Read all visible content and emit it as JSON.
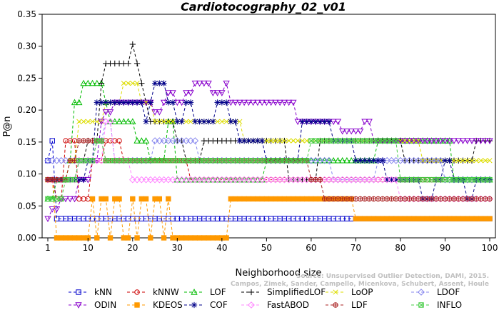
{
  "chart_data": {
    "type": "line",
    "title": "Cardiotocography_02_v01",
    "xlabel": "Neighborhood size",
    "ylabel": "P@n",
    "xlim": [
      1,
      100
    ],
    "ylim": [
      0,
      0.35
    ],
    "x_ticks": [
      1,
      10,
      20,
      30,
      40,
      50,
      60,
      70,
      80,
      90,
      100
    ],
    "y_ticks": [
      "0.00",
      "0.05",
      "0.10",
      "0.15",
      "0.20",
      "0.25",
      "0.30",
      "0.35"
    ],
    "legend_position": "bottom",
    "watermark": [
      "Source: Unsupervised Outlier Detection, DAMI, 2015.",
      "Campos, Zimek, Sander, Campello, Micenkova, Schubert, Assent, Houle"
    ],
    "series": [
      {
        "name": "kNN",
        "color": "#0000cc",
        "marker": "square",
        "points": [
          [
            1,
            0.121
          ],
          [
            2,
            0.152
          ],
          [
            3,
            0.03
          ],
          [
            100,
            0.03
          ]
        ]
      },
      {
        "name": "kNNW",
        "color": "#cc0000",
        "marker": "circle",
        "points": [
          [
            1,
            0.091
          ],
          [
            3,
            0.061
          ],
          [
            5,
            0.152
          ],
          [
            8,
            0.061
          ],
          [
            10,
            0.061
          ],
          [
            11,
            0.121
          ],
          [
            14,
            0.152
          ],
          [
            17,
            0.152
          ],
          [
            18,
            0.121
          ],
          [
            28,
            0.121
          ],
          [
            32,
            0.121
          ],
          [
            33,
            0.091
          ],
          [
            100,
            0.091
          ]
        ]
      },
      {
        "name": "LOF",
        "color": "#00bb00",
        "marker": "triangle-up",
        "points": [
          [
            1,
            0.061
          ],
          [
            3,
            0.091
          ],
          [
            6,
            0.121
          ],
          [
            7,
            0.212
          ],
          [
            9,
            0.242
          ],
          [
            12,
            0.242
          ],
          [
            14,
            0.212
          ],
          [
            15,
            0.182
          ],
          [
            20,
            0.182
          ],
          [
            21,
            0.152
          ],
          [
            24,
            0.121
          ],
          [
            27,
            0.121
          ],
          [
            28,
            0.182
          ],
          [
            30,
            0.091
          ],
          [
            40,
            0.091
          ],
          [
            45,
            0.091
          ],
          [
            50,
            0.121
          ],
          [
            65,
            0.121
          ],
          [
            70,
            0.121
          ],
          [
            75,
            0.152
          ],
          [
            90,
            0.152
          ],
          [
            92,
            0.091
          ],
          [
            100,
            0.091
          ]
        ]
      },
      {
        "name": "SimplifiedLOF",
        "color": "#000000",
        "marker": "plus",
        "points": [
          [
            1,
            0.091
          ],
          [
            8,
            0.121
          ],
          [
            10,
            0.152
          ],
          [
            13,
            0.242
          ],
          [
            14,
            0.273
          ],
          [
            19,
            0.273
          ],
          [
            20,
            0.303
          ],
          [
            21,
            0.273
          ],
          [
            22,
            0.242
          ],
          [
            23,
            0.212
          ],
          [
            24,
            0.182
          ],
          [
            28,
            0.182
          ],
          [
            30,
            0.152
          ],
          [
            32,
            0.121
          ],
          [
            35,
            0.121
          ],
          [
            36,
            0.152
          ],
          [
            50,
            0.152
          ],
          [
            55,
            0.091
          ],
          [
            60,
            0.091
          ],
          [
            62,
            0.152
          ],
          [
            70,
            0.152
          ],
          [
            80,
            0.152
          ],
          [
            81,
            0.121
          ],
          [
            90,
            0.121
          ],
          [
            95,
            0.121
          ],
          [
            97,
            0.152
          ],
          [
            100,
            0.152
          ]
        ]
      },
      {
        "name": "LoOP",
        "color": "#dddd00",
        "marker": "x",
        "points": [
          [
            1,
            0.091
          ],
          [
            6,
            0.121
          ],
          [
            8,
            0.182
          ],
          [
            12,
            0.182
          ],
          [
            14,
            0.212
          ],
          [
            18,
            0.242
          ],
          [
            20,
            0.242
          ],
          [
            22,
            0.212
          ],
          [
            25,
            0.182
          ],
          [
            35,
            0.182
          ],
          [
            42,
            0.182
          ],
          [
            45,
            0.152
          ],
          [
            60,
            0.152
          ],
          [
            64,
            0.152
          ],
          [
            70,
            0.152
          ],
          [
            80,
            0.152
          ],
          [
            85,
            0.121
          ],
          [
            100,
            0.121
          ]
        ]
      },
      {
        "name": "LDOF",
        "color": "#8888ee",
        "marker": "diamond",
        "points": [
          [
            1,
            0.121
          ],
          [
            8,
            0.121
          ],
          [
            12,
            0.152
          ],
          [
            14,
            0.182
          ],
          [
            16,
            0.121
          ],
          [
            20,
            0.121
          ],
          [
            22,
            0.121
          ],
          [
            25,
            0.152
          ],
          [
            30,
            0.152
          ],
          [
            35,
            0.121
          ],
          [
            40,
            0.121
          ],
          [
            50,
            0.121
          ],
          [
            60,
            0.121
          ],
          [
            65,
            0.091
          ],
          [
            70,
            0.091
          ],
          [
            75,
            0.121
          ],
          [
            85,
            0.121
          ],
          [
            90,
            0.091
          ],
          [
            100,
            0.091
          ]
        ]
      },
      {
        "name": "ODIN",
        "color": "#8800cc",
        "marker": "triangle-down",
        "points": [
          [
            1,
            0.03
          ],
          [
            2,
            0.045
          ],
          [
            4,
            0.061
          ],
          [
            8,
            0.091
          ],
          [
            9,
            0.091
          ],
          [
            11,
            0.121
          ],
          [
            13,
            0.182
          ],
          [
            14,
            0.197
          ],
          [
            16,
            0.212
          ],
          [
            18,
            0.212
          ],
          [
            20,
            0.212
          ],
          [
            24,
            0.212
          ],
          [
            25,
            0.197
          ],
          [
            27,
            0.212
          ],
          [
            28,
            0.227
          ],
          [
            30,
            0.212
          ],
          [
            32,
            0.227
          ],
          [
            34,
            0.242
          ],
          [
            38,
            0.227
          ],
          [
            41,
            0.242
          ],
          [
            42,
            0.212
          ],
          [
            55,
            0.212
          ],
          [
            57,
            0.182
          ],
          [
            65,
            0.182
          ],
          [
            67,
            0.167
          ],
          [
            70,
            0.167
          ],
          [
            72,
            0.182
          ],
          [
            74,
            0.152
          ],
          [
            78,
            0.152
          ],
          [
            80,
            0.152
          ],
          [
            100,
            0.152
          ]
        ]
      },
      {
        "name": "KDEOS",
        "color": "#ff9900",
        "marker": "square-filled",
        "points": [
          [
            1,
            0.091
          ],
          [
            3,
            0.0
          ],
          [
            10,
            0.0
          ],
          [
            11,
            0.061
          ],
          [
            12,
            0.0
          ],
          [
            13,
            0.061
          ],
          [
            15,
            0.0
          ],
          [
            16,
            0.061
          ],
          [
            18,
            0.0
          ],
          [
            20,
            0.061
          ],
          [
            21,
            0.0
          ],
          [
            22,
            0.061
          ],
          [
            24,
            0.0
          ],
          [
            25,
            0.061
          ],
          [
            27,
            0.0
          ],
          [
            28,
            0.061
          ],
          [
            29,
            0.0
          ],
          [
            42,
            0.061
          ],
          [
            45,
            0.061
          ],
          [
            55,
            0.061
          ],
          [
            65,
            0.061
          ],
          [
            70,
            0.03
          ],
          [
            100,
            0.03
          ]
        ]
      },
      {
        "name": "COF",
        "color": "#000088",
        "marker": "asterisk",
        "points": [
          [
            1,
            0.091
          ],
          [
            8,
            0.091
          ],
          [
            10,
            0.121
          ],
          [
            12,
            0.212
          ],
          [
            14,
            0.212
          ],
          [
            18,
            0.212
          ],
          [
            20,
            0.212
          ],
          [
            22,
            0.212
          ],
          [
            23,
            0.182
          ],
          [
            24,
            0.212
          ],
          [
            25,
            0.242
          ],
          [
            26,
            0.242
          ],
          [
            28,
            0.212
          ],
          [
            30,
            0.182
          ],
          [
            32,
            0.212
          ],
          [
            34,
            0.182
          ],
          [
            38,
            0.182
          ],
          [
            39,
            0.212
          ],
          [
            40,
            0.212
          ],
          [
            42,
            0.182
          ],
          [
            44,
            0.152
          ],
          [
            50,
            0.121
          ],
          [
            55,
            0.121
          ],
          [
            58,
            0.182
          ],
          [
            62,
            0.182
          ],
          [
            65,
            0.152
          ],
          [
            70,
            0.121
          ],
          [
            72,
            0.121
          ],
          [
            75,
            0.121
          ],
          [
            77,
            0.091
          ],
          [
            85,
            0.061
          ],
          [
            88,
            0.091
          ],
          [
            90,
            0.121
          ],
          [
            92,
            0.091
          ],
          [
            95,
            0.061
          ],
          [
            97,
            0.091
          ],
          [
            100,
            0.091
          ]
        ]
      },
      {
        "name": "FastABOD",
        "color": "#ff88ff",
        "marker": "diamond-open",
        "points": [
          [
            1,
            0.091
          ],
          [
            6,
            0.091
          ],
          [
            8,
            0.121
          ],
          [
            12,
            0.121
          ],
          [
            14,
            0.182
          ],
          [
            16,
            0.121
          ],
          [
            20,
            0.091
          ],
          [
            30,
            0.091
          ],
          [
            40,
            0.091
          ],
          [
            50,
            0.091
          ],
          [
            55,
            0.091
          ],
          [
            60,
            0.091
          ],
          [
            70,
            0.091
          ],
          [
            80,
            0.061
          ],
          [
            100,
            0.061
          ]
        ]
      },
      {
        "name": "LDF",
        "color": "#aa2222",
        "marker": "circle-plus",
        "points": [
          [
            1,
            0.091
          ],
          [
            6,
            0.121
          ],
          [
            8,
            0.152
          ],
          [
            12,
            0.152
          ],
          [
            14,
            0.121
          ],
          [
            20,
            0.121
          ],
          [
            30,
            0.121
          ],
          [
            40,
            0.121
          ],
          [
            50,
            0.121
          ],
          [
            60,
            0.091
          ],
          [
            63,
            0.061
          ],
          [
            80,
            0.061
          ],
          [
            85,
            0.061
          ],
          [
            90,
            0.061
          ],
          [
            100,
            0.061
          ]
        ]
      },
      {
        "name": "INFLO",
        "color": "#44cc44",
        "marker": "hatched-square",
        "points": [
          [
            1,
            0.061
          ],
          [
            2,
            0.061
          ],
          [
            5,
            0.091
          ],
          [
            8,
            0.121
          ],
          [
            10,
            0.121
          ],
          [
            12,
            0.152
          ],
          [
            14,
            0.121
          ],
          [
            16,
            0.121
          ],
          [
            22,
            0.121
          ],
          [
            30,
            0.121
          ],
          [
            40,
            0.121
          ],
          [
            50,
            0.121
          ],
          [
            60,
            0.152
          ],
          [
            65,
            0.152
          ],
          [
            70,
            0.152
          ],
          [
            75,
            0.152
          ],
          [
            80,
            0.091
          ],
          [
            85,
            0.091
          ],
          [
            90,
            0.091
          ],
          [
            100,
            0.091
          ]
        ]
      }
    ]
  }
}
